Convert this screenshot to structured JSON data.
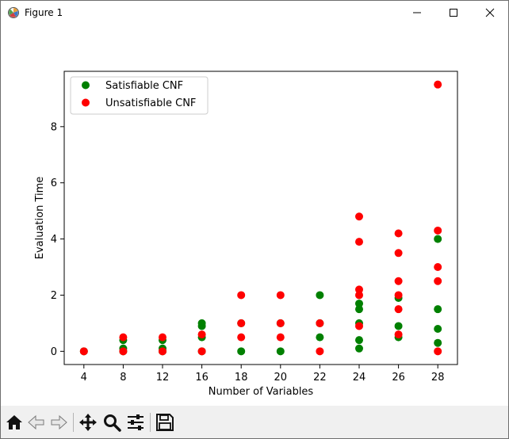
{
  "window": {
    "title": "Figure 1",
    "icons": {
      "app": "matplotlib-icon",
      "minimize": "minimize-icon",
      "maximize": "maximize-icon",
      "close": "close-icon"
    }
  },
  "toolbar": {
    "icons": [
      "home-icon",
      "back-arrow-icon",
      "forward-arrow-icon",
      "pan-move-icon",
      "zoom-magnifier-icon",
      "configure-subplots-icon",
      "save-floppy-icon"
    ]
  },
  "colors": {
    "satisfiable": "#008000",
    "unsatisfiable": "#ff0000"
  },
  "chart_data": {
    "type": "scatter",
    "title": "",
    "xlabel": "Number of Variables",
    "ylabel": "Evaluation Time",
    "x_ticks": [
      4,
      8,
      12,
      16,
      18,
      20,
      22,
      24,
      26,
      28
    ],
    "y_ticks": [
      0,
      2,
      4,
      6,
      8
    ],
    "ylim": [
      -0.47,
      9.97
    ],
    "grid": false,
    "legend_position": "top-left",
    "series": [
      {
        "name": "Satisfiable CNF",
        "color": "#008000",
        "points": [
          [
            4,
            0.0
          ],
          [
            8,
            0.0
          ],
          [
            8,
            0.1
          ],
          [
            8,
            0.4
          ],
          [
            12,
            0.0
          ],
          [
            12,
            0.1
          ],
          [
            12,
            0.4
          ],
          [
            16,
            0.0
          ],
          [
            16,
            0.5
          ],
          [
            16,
            0.9
          ],
          [
            16,
            1.0
          ],
          [
            18,
            0.0
          ],
          [
            18,
            1.0
          ],
          [
            20,
            0.0
          ],
          [
            20,
            1.0
          ],
          [
            22,
            0.5
          ],
          [
            22,
            1.0
          ],
          [
            22,
            2.0
          ],
          [
            24,
            0.1
          ],
          [
            24,
            0.4
          ],
          [
            24,
            1.0
          ],
          [
            24,
            1.5
          ],
          [
            24,
            1.7
          ],
          [
            26,
            0.5
          ],
          [
            26,
            0.9
          ],
          [
            26,
            1.9
          ],
          [
            28,
            0.3
          ],
          [
            28,
            0.8
          ],
          [
            28,
            1.5
          ],
          [
            28,
            4.0
          ]
        ]
      },
      {
        "name": "Unsatisfiable CNF",
        "color": "#ff0000",
        "points": [
          [
            4,
            0.0
          ],
          [
            8,
            0.0
          ],
          [
            8,
            0.5
          ],
          [
            12,
            0.0
          ],
          [
            12,
            0.5
          ],
          [
            16,
            0.0
          ],
          [
            16,
            0.6
          ],
          [
            18,
            0.5
          ],
          [
            18,
            1.0
          ],
          [
            18,
            2.0
          ],
          [
            20,
            0.5
          ],
          [
            20,
            1.0
          ],
          [
            20,
            2.0
          ],
          [
            22,
            0.0
          ],
          [
            22,
            1.0
          ],
          [
            24,
            0.9
          ],
          [
            24,
            2.0
          ],
          [
            24,
            2.2
          ],
          [
            24,
            3.9
          ],
          [
            24,
            4.8
          ],
          [
            26,
            0.6
          ],
          [
            26,
            1.5
          ],
          [
            26,
            2.0
          ],
          [
            26,
            2.5
          ],
          [
            26,
            3.5
          ],
          [
            26,
            4.2
          ],
          [
            28,
            0.0
          ],
          [
            28,
            2.5
          ],
          [
            28,
            3.0
          ],
          [
            28,
            4.3
          ],
          [
            28,
            9.5
          ]
        ]
      }
    ]
  }
}
